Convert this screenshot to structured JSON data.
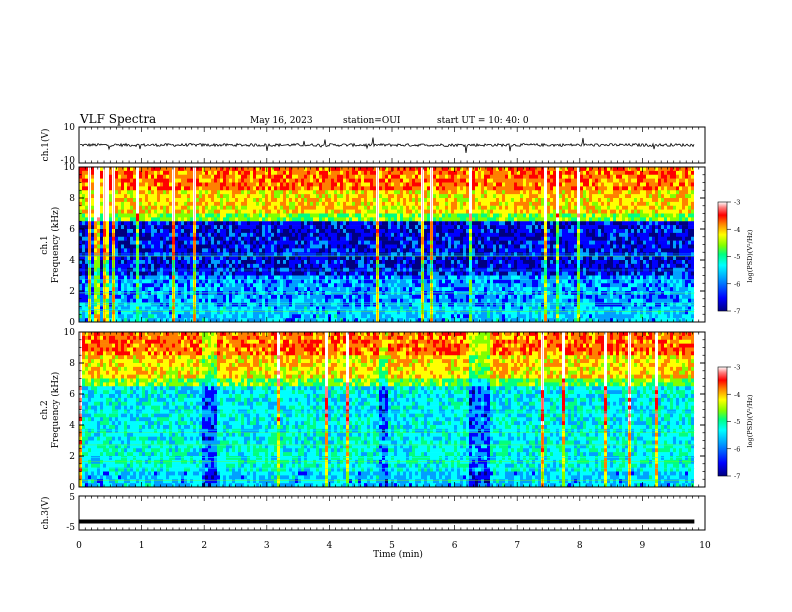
{
  "header": {
    "title": "VLF Spectra",
    "date": "May 16, 2023",
    "station": "station=OUI",
    "start": "start  UT  =   10: 40: 0"
  },
  "colors": {
    "trace": "#000000",
    "colormap": [
      "#000080",
      "#0000ff",
      "#00a0ff",
      "#00ffff",
      "#00ff80",
      "#80ff00",
      "#ffff00",
      "#ff8000",
      "#ff0000",
      "#ff8080",
      "#ffffff"
    ]
  },
  "chart_data": [
    {
      "type": "line",
      "panel": "ch1-waveform",
      "ylabel": "ch.1(V)",
      "ylim": [
        -10,
        10
      ],
      "ytick_labels": [
        "10",
        "-10"
      ],
      "baseline": 0,
      "note_shape": "noisy trace near 0 V with spikes"
    },
    {
      "type": "heatmap",
      "panel": "ch1-spectrogram",
      "ylabel_line1": "ch.1",
      "ylabel_line2": "Frequency (kHz)",
      "ylim": [
        0,
        10
      ],
      "ytick_labels": [
        "10",
        "8",
        "6",
        "4",
        "2",
        "0"
      ],
      "colorbar_label": "log(PSD)(V²/Hz)",
      "colorbar_range": [
        -7,
        -3
      ],
      "colorbar_tick_labels": [
        "-3",
        "-4",
        "-5",
        "-6",
        "-7"
      ],
      "dark_band_kHz": [
        3,
        6.5
      ]
    },
    {
      "type": "heatmap",
      "panel": "ch2-spectrogram",
      "ylabel_line1": "ch.2",
      "ylabel_line2": "Frequency (kHz)",
      "ylim": [
        0,
        10
      ],
      "ytick_labels": [
        "10",
        "8",
        "6",
        "4",
        "2",
        "0"
      ],
      "colorbar_label": "log(PSD)(V²/Hz)",
      "colorbar_range": [
        -7,
        -3
      ],
      "colorbar_tick_labels": [
        "-3",
        "-4",
        "-5",
        "-6",
        "-7"
      ],
      "dark_band_kHz": [
        3,
        6.5
      ]
    },
    {
      "type": "line",
      "panel": "ch3-waveform",
      "ylabel": "ch.3(V)",
      "ylim": [
        -5,
        5
      ],
      "ytick_labels": [
        "5",
        "-5"
      ],
      "constant_level": -2.5
    }
  ],
  "xaxis": {
    "label": "Time (min)",
    "range": [
      0,
      10
    ],
    "tick_labels": [
      "0",
      "1",
      "2",
      "3",
      "4",
      "5",
      "6",
      "7",
      "8",
      "9",
      "10"
    ],
    "data_end_min": 9.83
  }
}
